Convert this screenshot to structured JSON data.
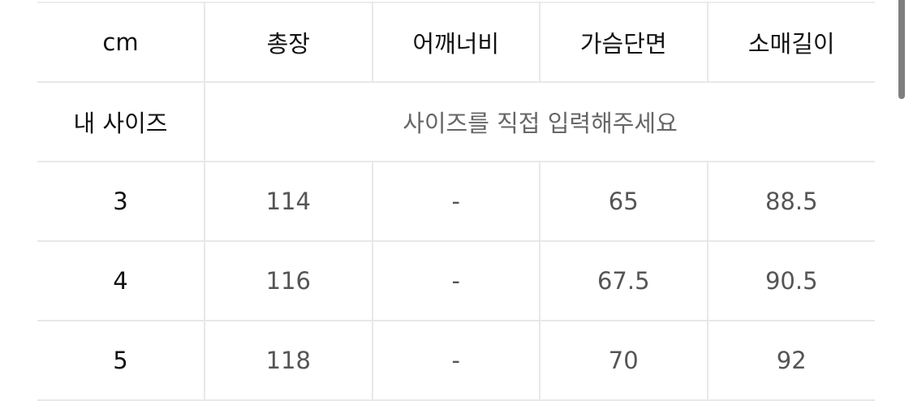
{
  "headers": [
    "cm",
    "총장",
    "어깨너비",
    "가슴단면",
    "소매길이"
  ],
  "my_size": {
    "label": "내 사이즈",
    "placeholder": "사이즈를 직접 입력해주세요"
  },
  "rows": [
    [
      "3",
      "114",
      "-",
      "65",
      "88.5"
    ],
    [
      "4",
      "116",
      "-",
      "67.5",
      "90.5"
    ],
    [
      "5",
      "118",
      "-",
      "70",
      "92"
    ]
  ]
}
